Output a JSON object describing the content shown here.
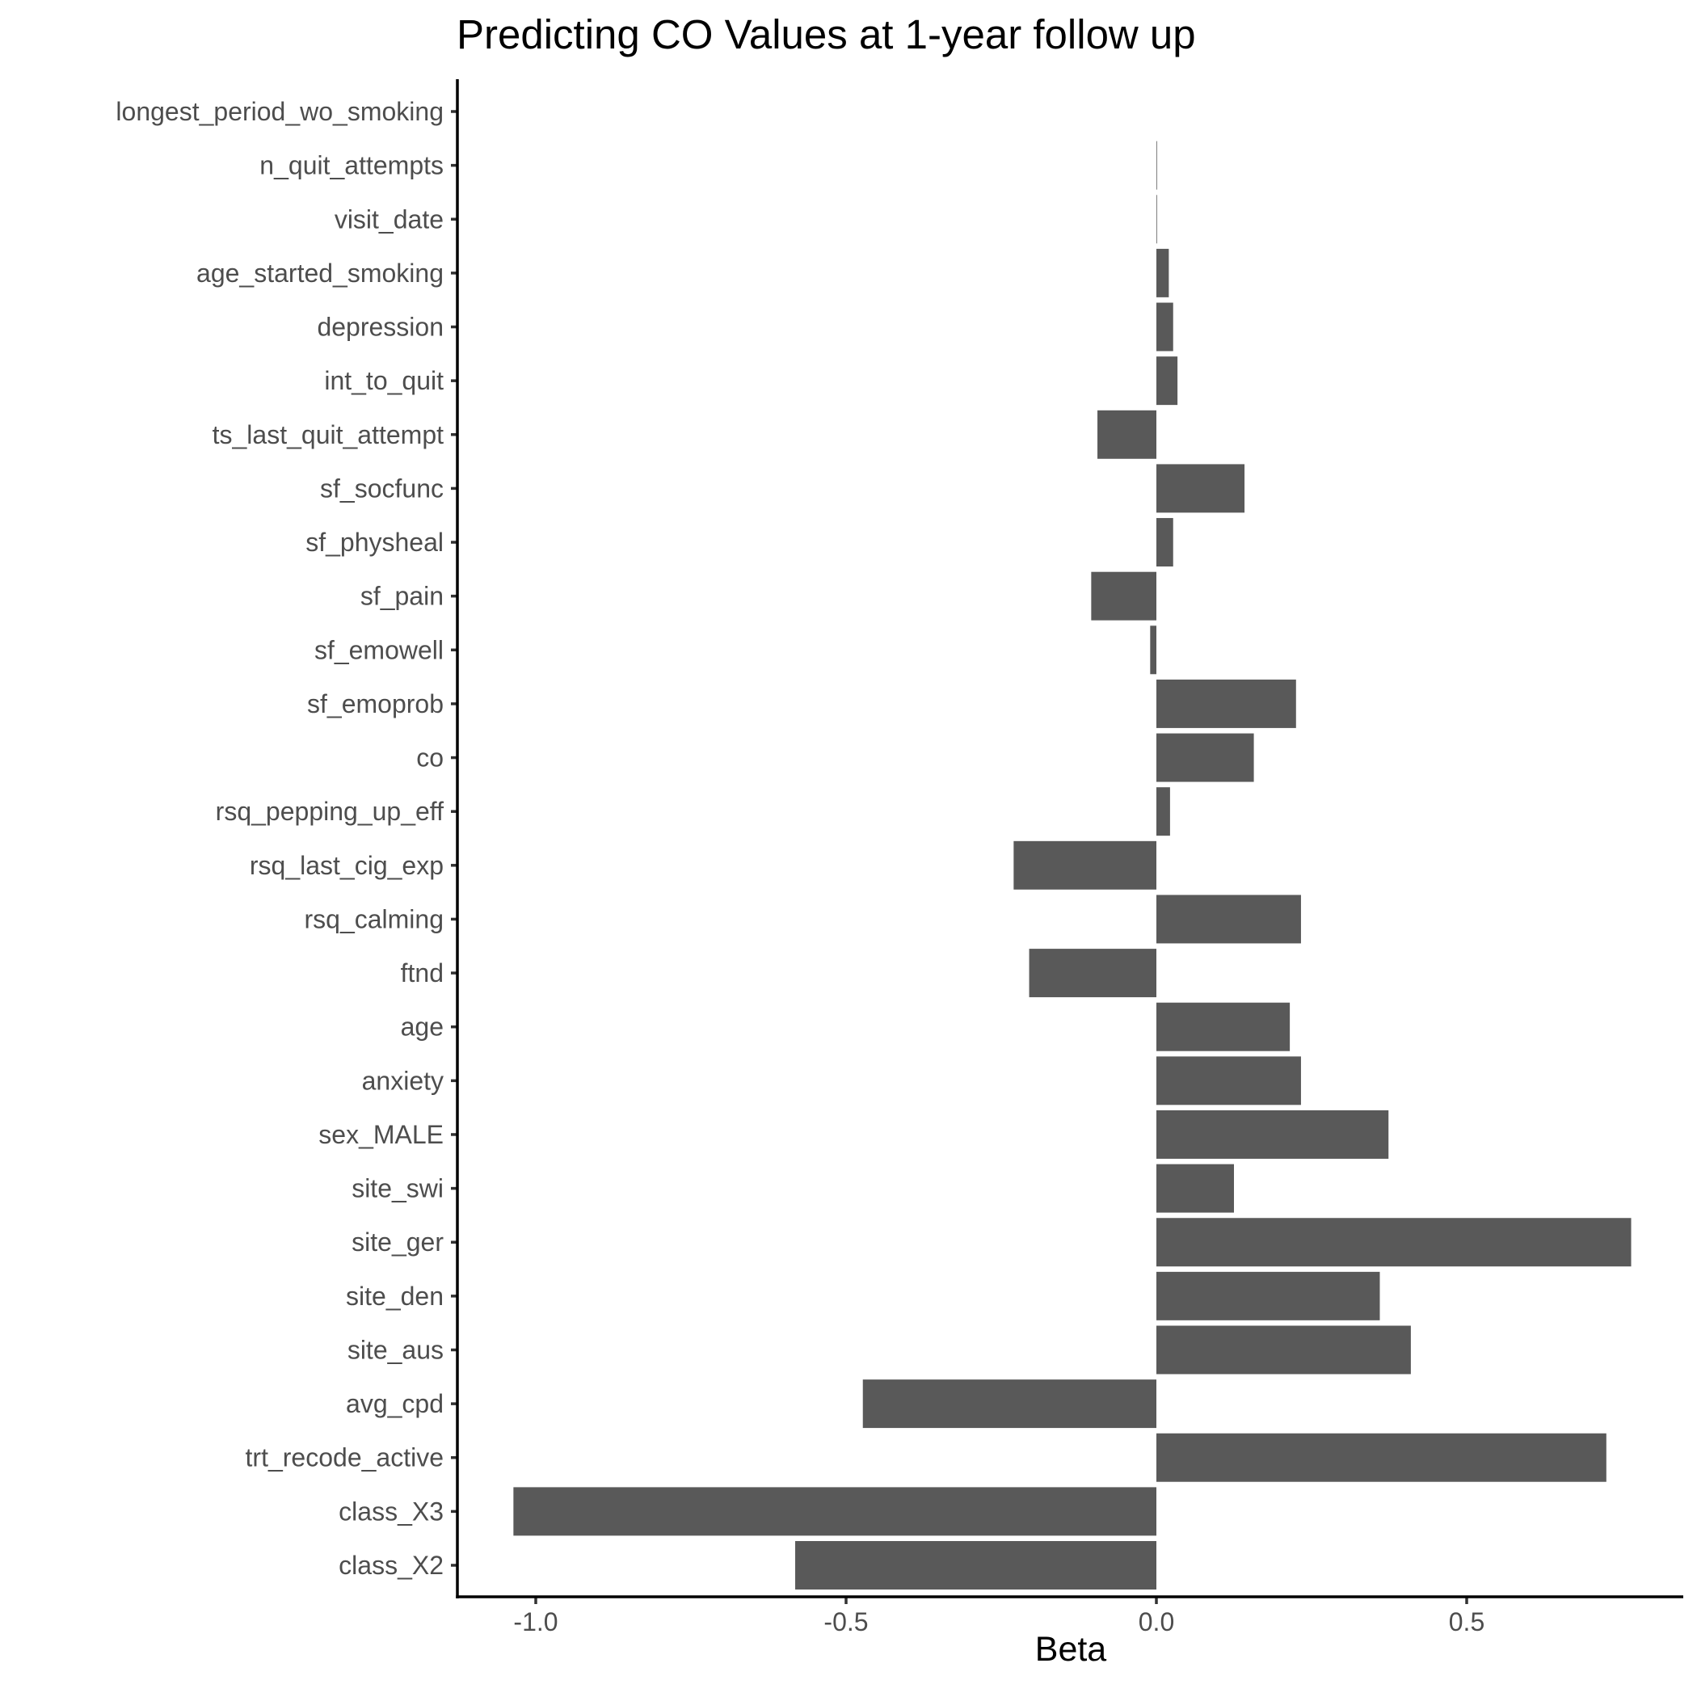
{
  "chart_data": {
    "type": "bar",
    "orientation": "horizontal",
    "title": "Predicting CO Values at 1-year follow up",
    "xlabel": "Beta",
    "ylabel": "",
    "xlim": [
      -1.12,
      0.85
    ],
    "xticks": [
      -1.0,
      -0.5,
      0.0,
      0.5
    ],
    "xtick_labels": [
      "-1.0",
      "-0.5",
      "0.0",
      "0.5"
    ],
    "grid": false,
    "bar_color": "#595959",
    "categories": [
      "longest_period_wo_smoking",
      "n_quit_attempts",
      "visit_date",
      "age_started_smoking",
      "depression",
      "int_to_quit",
      "ts_last_quit_attempt",
      "sf_socfunc",
      "sf_physheal",
      "sf_pain",
      "sf_emowell",
      "sf_emoprob",
      "co",
      "rsq_pepping_up_eff",
      "rsq_last_cig_exp",
      "rsq_calming",
      "ftnd",
      "age",
      "anxiety",
      "sex_MALE",
      "site_swi",
      "site_ger",
      "site_den",
      "site_aus",
      "avg_cpd",
      "trt_recode_active",
      "class_X3",
      "class_X2"
    ],
    "values": [
      0.0,
      0.001,
      0.001,
      0.02,
      0.027,
      0.034,
      -0.095,
      0.142,
      0.027,
      -0.105,
      -0.01,
      0.225,
      0.157,
      0.022,
      -0.23,
      0.233,
      -0.205,
      0.215,
      0.233,
      0.374,
      0.125,
      0.765,
      0.36,
      0.41,
      -0.473,
      0.725,
      -1.036,
      -0.582
    ]
  }
}
